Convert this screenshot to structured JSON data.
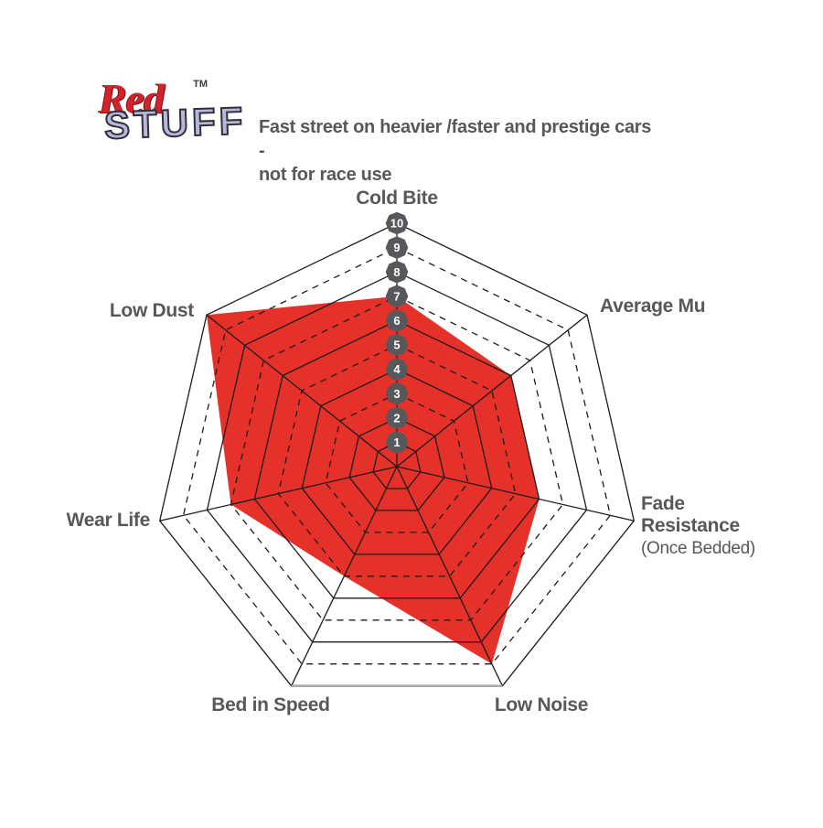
{
  "logo": {
    "red": "Red",
    "trademark": "TM",
    "stuff": "STUFF"
  },
  "subtitle": {
    "line1": "Fast street on heavier /faster and prestige cars -",
    "line2": "not for race use"
  },
  "chart_data": {
    "type": "radar",
    "title": "RedStuff brake pad performance radar",
    "categories": [
      "Cold Bite",
      "Average Mu",
      "Fade Resistance",
      "Low Noise",
      "Bed in Speed",
      "Wear Life",
      "Low Dust"
    ],
    "values": [
      7,
      6,
      6,
      9,
      5,
      7,
      10
    ],
    "scale": {
      "min": 0,
      "max": 10,
      "ticks": [
        "1",
        "2",
        "3",
        "4",
        "5",
        "6",
        "7",
        "8",
        "9",
        "10"
      ]
    },
    "axis_labels": [
      {
        "id": "cold-bite",
        "lines": [
          "Cold Bite"
        ],
        "sublines": []
      },
      {
        "id": "average-mu",
        "lines": [
          "Average Mu"
        ],
        "sublines": []
      },
      {
        "id": "fade-resistance",
        "lines": [
          "Fade",
          "Resistance"
        ],
        "sublines": [
          "(Once Bedded)"
        ]
      },
      {
        "id": "low-noise",
        "lines": [
          "Low Noise"
        ],
        "sublines": []
      },
      {
        "id": "bed-in-speed",
        "lines": [
          "Bed in Speed"
        ],
        "sublines": []
      },
      {
        "id": "wear-life",
        "lines": [
          "Wear Life"
        ],
        "sublines": []
      },
      {
        "id": "low-dust",
        "lines": [
          "Low Dust"
        ],
        "sublines": []
      }
    ],
    "layout": {
      "axes_count": 7,
      "rings": 10,
      "dashed_rings": [
        3,
        5,
        7,
        9
      ],
      "grid_shape": "heptagon",
      "tick_badge_shape": "octagon",
      "legend": "none"
    },
    "colors": {
      "fill": "#e5312a",
      "grid": "#1c1c1c",
      "badge": "#58585c",
      "badge_text": "#ffffff",
      "label": "#58585a",
      "baseline": "#a9a9a9",
      "logo_red": "#d2232a",
      "logo_stuff": "#b7b7da"
    }
  }
}
